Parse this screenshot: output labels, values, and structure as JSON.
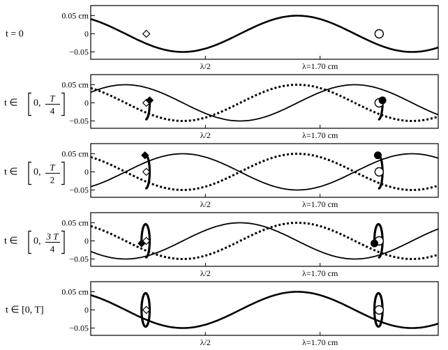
{
  "figure": {
    "y_ticks": [
      "0.05 cm",
      "0",
      "−0.05"
    ],
    "x_labels": [
      "λ/2",
      "λ=1.70 cm"
    ],
    "wavelength_cm": 1.7,
    "amplitude_cm": 0.05,
    "colors": {
      "ink": "#000000",
      "background": "#ffffff"
    }
  },
  "panels": [
    {
      "id": "t0",
      "label_text": "t = 0",
      "label_type": "plain",
      "phase_fraction": 0.0
    },
    {
      "id": "t-quarter",
      "label_prefix": "t ∈",
      "label_lo": "0,",
      "label_num": "T",
      "label_den": "4",
      "label_type": "fraction",
      "phase_fraction": 0.25
    },
    {
      "id": "t-half",
      "label_prefix": "t ∈",
      "label_lo": "0,",
      "label_num": "T",
      "label_den": "2",
      "label_type": "fraction",
      "phase_fraction": 0.5
    },
    {
      "id": "t-three-quarter",
      "label_prefix": "t ∈",
      "label_lo": "0,",
      "label_num": "3 T",
      "label_den": "4",
      "label_type": "fraction",
      "phase_fraction": 0.75
    },
    {
      "id": "t-full",
      "label_text": "t ∈ [0,  T]",
      "label_type": "plain",
      "phase_fraction": 1.0
    }
  ]
}
